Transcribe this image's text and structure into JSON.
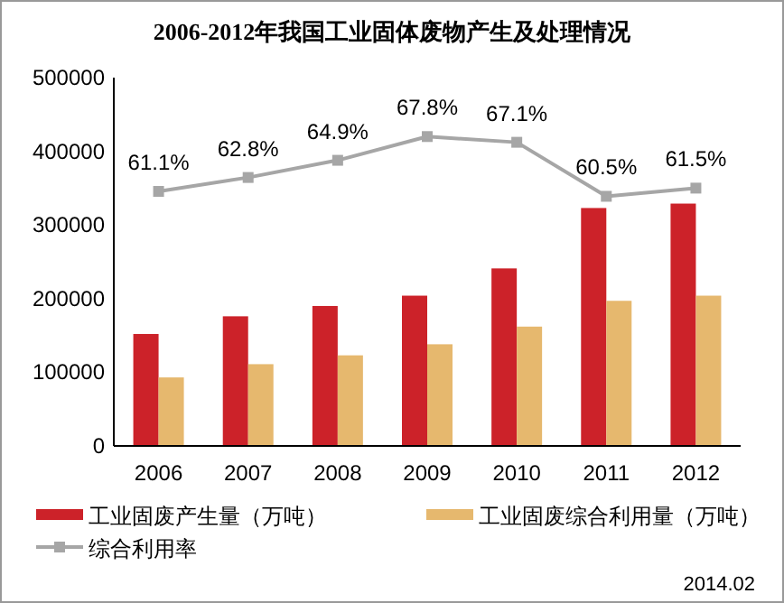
{
  "chart_data": {
    "type": "bar",
    "title": "2006-2012年我国工业固体废物产生及处理情况",
    "categories": [
      "2006",
      "2007",
      "2008",
      "2009",
      "2010",
      "2011",
      "2012"
    ],
    "series": [
      {
        "name": "工业固废产生量（万吨）",
        "color": "#cc2229",
        "values": [
          152000,
          176000,
          190000,
          204000,
          241000,
          323000,
          329000
        ]
      },
      {
        "name": "工业固废综合利用量（万吨）",
        "color": "#e6b86e",
        "values": [
          93000,
          111000,
          123000,
          138000,
          162000,
          197000,
          204000
        ]
      },
      {
        "name": "综合利用率",
        "type": "line",
        "axis": "y2",
        "color": "#a6a6a6",
        "marker": "square",
        "values": [
          61.1,
          62.8,
          64.9,
          67.8,
          67.1,
          60.5,
          61.5
        ],
        "value_labels": [
          "61.1%",
          "62.8%",
          "64.9%",
          "67.8%",
          "67.1%",
          "60.5%",
          "61.5%"
        ]
      }
    ],
    "ylim": [
      0,
      500000
    ],
    "yticks": [
      0,
      100000,
      200000,
      300000,
      400000,
      500000
    ],
    "y2lim": [
      30,
      75
    ],
    "grid": false,
    "legend": "bottom",
    "annotations": [
      "2014.02"
    ]
  }
}
